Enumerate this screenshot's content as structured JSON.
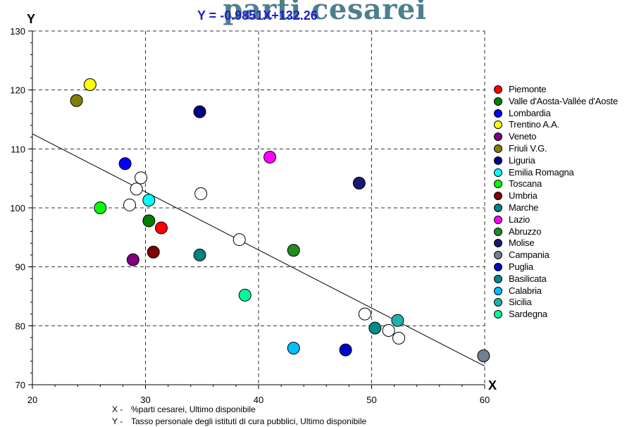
{
  "colors": {
    "title": "#4d7f8d",
    "regression_label": "#2020c8"
  },
  "chart_data": {
    "type": "scatter",
    "title": "parti cesarei",
    "regression_label": "Y = -0.9851X+132.26",
    "regression": {
      "slope": -0.9851,
      "intercept": 132.26
    },
    "xlabel": "X",
    "ylabel": "Y",
    "xlim": [
      20,
      60
    ],
    "ylim": [
      70,
      130
    ],
    "x_ticks": [
      "20",
      "30",
      "40",
      "50",
      "60"
    ],
    "y_ticks": [
      "70",
      "80",
      "90",
      "100",
      "110",
      "120",
      "130"
    ],
    "grid": true,
    "legend": "right",
    "series": [
      {
        "name": "Piemonte",
        "color": "#ff0000",
        "points": [
          [
            31.4,
            96.6
          ]
        ]
      },
      {
        "name": "Valle d'Aosta-Vallée d'Aoste",
        "color": "#008000",
        "points": [
          [
            30.3,
            97.8
          ]
        ]
      },
      {
        "name": "Lombardia",
        "color": "#0000ff",
        "points": [
          [
            28.2,
            107.5
          ]
        ]
      },
      {
        "name": "Trentino A.A.",
        "color": "#ffff00",
        "points": [
          [
            25.1,
            120.9
          ]
        ]
      },
      {
        "name": "Veneto",
        "color": "#800080",
        "points": [
          [
            28.9,
            91.2
          ]
        ]
      },
      {
        "name": "Friuli V.G.",
        "color": "#808000",
        "points": [
          [
            23.9,
            118.2
          ]
        ]
      },
      {
        "name": "Liguria",
        "color": "#000080",
        "points": [
          [
            34.8,
            116.3
          ]
        ]
      },
      {
        "name": "Emilia Romagna",
        "color": "#00ffff",
        "points": [
          [
            30.3,
            101.3
          ]
        ]
      },
      {
        "name": "Toscana",
        "color": "#00ff00",
        "points": [
          [
            26.0,
            100.0
          ]
        ]
      },
      {
        "name": "Umbria",
        "color": "#800000",
        "points": [
          [
            30.7,
            92.5
          ]
        ]
      },
      {
        "name": "Marche",
        "color": "#008080",
        "points": [
          [
            34.8,
            92.0
          ]
        ]
      },
      {
        "name": "Lazio",
        "color": "#ff00ff",
        "points": [
          [
            41.0,
            108.6
          ]
        ]
      },
      {
        "name": "Abruzzo",
        "color": "#228b22",
        "points": [
          [
            43.1,
            92.8
          ]
        ]
      },
      {
        "name": "Molise",
        "color": "#191970",
        "points": [
          [
            48.9,
            104.2
          ]
        ]
      },
      {
        "name": "Campania",
        "color": "#708090",
        "points": [
          [
            59.9,
            74.9
          ]
        ]
      },
      {
        "name": "Puglia",
        "color": "#0000cd",
        "points": [
          [
            47.7,
            75.9
          ]
        ]
      },
      {
        "name": "Basilicata",
        "color": "#008b8b",
        "points": [
          [
            50.3,
            79.6
          ]
        ]
      },
      {
        "name": "Calabria",
        "color": "#00bfff",
        "points": [
          [
            43.1,
            76.2
          ]
        ]
      },
      {
        "name": "Sicilia",
        "color": "#20b2aa",
        "points": [
          [
            52.3,
            80.9
          ]
        ]
      },
      {
        "name": "Sardegna",
        "color": "#00fa9a",
        "points": [
          [
            38.8,
            85.2
          ]
        ]
      },
      {
        "color": "#ffffff",
        "points": [
          [
            29.6,
            105.1
          ],
          [
            29.2,
            103.2
          ],
          [
            28.6,
            100.5
          ],
          [
            34.9,
            102.4
          ],
          [
            38.3,
            94.6
          ],
          [
            49.4,
            82.0
          ],
          [
            51.5,
            79.2
          ],
          [
            52.4,
            77.9
          ]
        ]
      }
    ],
    "axis_notes": [
      {
        "prefix": "X -",
        "text": "%parti cesarei, Ultimo disponibile"
      },
      {
        "prefix": "Y -",
        "text": "Tasso personale degli istituti di cura pubblici, Ultimo disponibile"
      }
    ]
  }
}
